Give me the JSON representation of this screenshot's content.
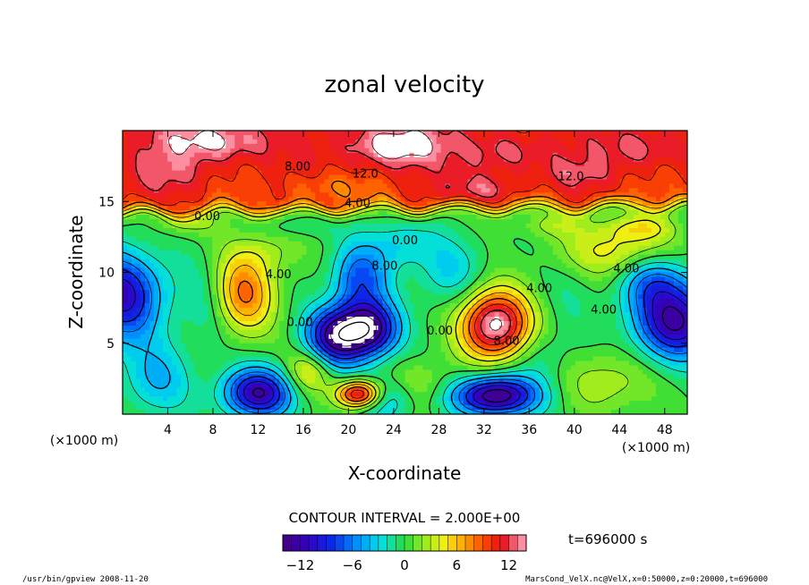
{
  "chart_data": {
    "type": "heatmap",
    "title": "zonal velocity",
    "xlabel": "X-coordinate",
    "ylabel": "Z-coordinate",
    "x_unit_left": "(×1000 m)",
    "x_unit_right": "(×1000 m)",
    "x_ticks": [
      4,
      8,
      12,
      16,
      20,
      24,
      28,
      32,
      36,
      40,
      44,
      48
    ],
    "y_ticks": [
      5,
      10,
      15
    ],
    "xlim": [
      0,
      50
    ],
    "ylim": [
      0,
      20
    ],
    "contour_interval_label": "CONTOUR INTERVAL = 2.000E+00",
    "time_label": "t=696000 s",
    "colorbar": {
      "range": [
        -14,
        14
      ],
      "ticks": [
        -12,
        -6,
        0,
        6,
        12
      ]
    },
    "contour_labels": [
      {
        "text": "8.00",
        "x": 15.5,
        "y": 17.2
      },
      {
        "text": "12.0",
        "x": 21.5,
        "y": 16.7
      },
      {
        "text": "12.0",
        "x": 39.7,
        "y": 16.5
      },
      {
        "text": "4.00",
        "x": 20.8,
        "y": 14.6
      },
      {
        "text": "0.00",
        "x": 7.5,
        "y": 13.7
      },
      {
        "text": "0.00",
        "x": 25.0,
        "y": 12.0
      },
      {
        "text": "4.00",
        "x": 13.8,
        "y": 9.6
      },
      {
        "text": "8.00",
        "x": 23.2,
        "y": 10.2
      },
      {
        "text": "4.00",
        "x": 36.9,
        "y": 8.6
      },
      {
        "text": "4.00",
        "x": 44.6,
        "y": 10.0
      },
      {
        "text": "4.00",
        "x": 42.6,
        "y": 7.1
      },
      {
        "text": "0.00",
        "x": 15.7,
        "y": 6.2
      },
      {
        "text": "0.00",
        "x": 28.1,
        "y": 5.6
      },
      {
        "text": "8.00",
        "x": 34.0,
        "y": 4.9
      }
    ]
  },
  "footer": {
    "left": "/usr/bin/gpview   2008-11-20",
    "right": "MarsCond_VelX.nc@VelX,x=0:50000,z=0:20000,t=696000"
  }
}
